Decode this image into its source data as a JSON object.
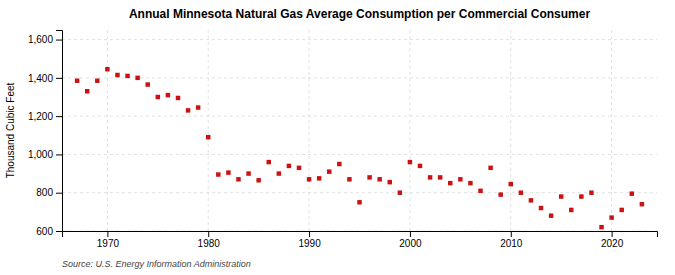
{
  "chart_data": {
    "type": "scatter",
    "title": "Annual Minnesota Natural Gas Average Consumption per Commercial Consumer",
    "ylabel": "Thousand Cubic Feet",
    "source": "Source: U.S. Energy Information Administration",
    "x": [
      1967,
      1968,
      1969,
      1970,
      1971,
      1972,
      1973,
      1974,
      1975,
      1976,
      1977,
      1978,
      1979,
      1980,
      1981,
      1982,
      1983,
      1984,
      1985,
      1986,
      1987,
      1988,
      1989,
      1990,
      1991,
      1992,
      1993,
      1994,
      1995,
      1996,
      1997,
      1998,
      1999,
      2000,
      2001,
      2002,
      2003,
      2004,
      2005,
      2006,
      2007,
      2008,
      2009,
      2010,
      2011,
      2012,
      2013,
      2014,
      2015,
      2016,
      2017,
      2018,
      2019,
      2020,
      2021,
      2022,
      2023
    ],
    "values": [
      1385,
      1330,
      1385,
      1445,
      1415,
      1410,
      1400,
      1365,
      1300,
      1310,
      1295,
      1230,
      1245,
      1090,
      895,
      905,
      870,
      900,
      865,
      960,
      900,
      940,
      930,
      870,
      875,
      910,
      950,
      870,
      750,
      880,
      870,
      855,
      800,
      960,
      940,
      880,
      880,
      850,
      870,
      850,
      810,
      930,
      790,
      845,
      800,
      760,
      720,
      680,
      780,
      710,
      780,
      800,
      620,
      670,
      710,
      795,
      740
    ],
    "color": "#cc1111",
    "marker": "square",
    "xlim": [
      1965.5,
      2024.5
    ],
    "xticks": [
      1970,
      1980,
      1990,
      2000,
      2010,
      2020
    ],
    "ylim": [
      600,
      1650
    ],
    "yticks": [
      600,
      800,
      {
        "value": 1000,
        "label": "1,000"
      },
      {
        "value": 1200,
        "label": "1,200"
      },
      {
        "value": 1400,
        "label": "1,400"
      },
      {
        "value": 1600,
        "label": "1,600"
      }
    ],
    "grid": true
  }
}
